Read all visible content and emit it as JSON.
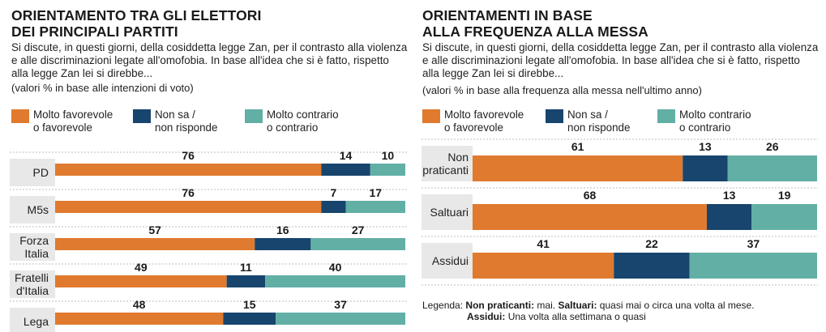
{
  "colors": {
    "favorevole": "#E07A2E",
    "non_sa": "#17456E",
    "contrario": "#62AFA6",
    "row_band": "#E8E8E8"
  },
  "left": {
    "title_lines": [
      "Orientamento tra gli elettori",
      "dei principali partiti"
    ],
    "subtitle": "Si discute, in questi giorni, della cosiddetta legge Zan, per il contrasto alla violenza e alle discriminazioni legate all'omofobia. In base all'idea che si è fatto, rispetto alla legge Zan lei si direbbe...",
    "note": "(valori % in base alle intenzioni di voto)",
    "legend": [
      {
        "label": "Molto favorevole\no favorevole",
        "color": "#E07A2E"
      },
      {
        "label": "Non sa /\nnon risponde",
        "color": "#17456E"
      },
      {
        "label": "Molto contrario\no contrario",
        "color": "#62AFA6"
      }
    ]
  },
  "right": {
    "title_lines": [
      "Orientamenti in base",
      "alla frequenza alla messa"
    ],
    "subtitle": "Si discute, in questi giorni, della cosiddetta legge Zan, per il contrasto alla violenza e alle discriminazioni legate all'omofobia. In base all'idea che si è fatto, rispetto alla legge Zan lei si direbbe...",
    "note": "(valori % in base alla frequenza alla messa nell'ultimo anno)",
    "legend": [
      {
        "label": "Molto favorevole\no favorevole",
        "color": "#E07A2E"
      },
      {
        "label": "Non sa /\nnon risponde",
        "color": "#17456E"
      },
      {
        "label": "Molto contrario\no contrario",
        "color": "#62AFA6"
      }
    ],
    "footnote": {
      "prefix": "Legenda:",
      "line1_term1": "Non praticanti:",
      "line1_def1": "mai.",
      "line1_term2": "Saltuari:",
      "line1_def2": "quasi mai o circa una volta al mese.",
      "line2_term": "Assidui:",
      "line2_def": "Una volta alla settimana o quasi"
    }
  },
  "chart_data": [
    {
      "type": "bar",
      "orientation": "horizontal",
      "stacked": true,
      "title": "Orientamento tra gli elettori dei principali partiti",
      "categories": [
        "PD",
        "M5s",
        "Forza\nItalia",
        "Fratelli\nd'Italia",
        "Lega"
      ],
      "series": [
        {
          "name": "Molto favorevole o favorevole",
          "values": [
            76,
            76,
            57,
            49,
            48
          ]
        },
        {
          "name": "Non sa / non risponde",
          "values": [
            14,
            7,
            16,
            11,
            15
          ]
        },
        {
          "name": "Molto contrario o contrario",
          "values": [
            10,
            17,
            27,
            40,
            37
          ]
        }
      ],
      "xlim": [
        0,
        100
      ]
    },
    {
      "type": "bar",
      "orientation": "horizontal",
      "stacked": true,
      "title": "Orientamenti in base alla frequenza alla messa",
      "categories": [
        "Non\npraticanti",
        "Saltuari",
        "Assidui"
      ],
      "series": [
        {
          "name": "Molto favorevole o favorevole",
          "values": [
            61,
            68,
            41
          ]
        },
        {
          "name": "Non sa / non risponde",
          "values": [
            13,
            13,
            22
          ]
        },
        {
          "name": "Molto contrario o contrario",
          "values": [
            26,
            19,
            37
          ]
        }
      ],
      "xlim": [
        0,
        100
      ]
    }
  ]
}
